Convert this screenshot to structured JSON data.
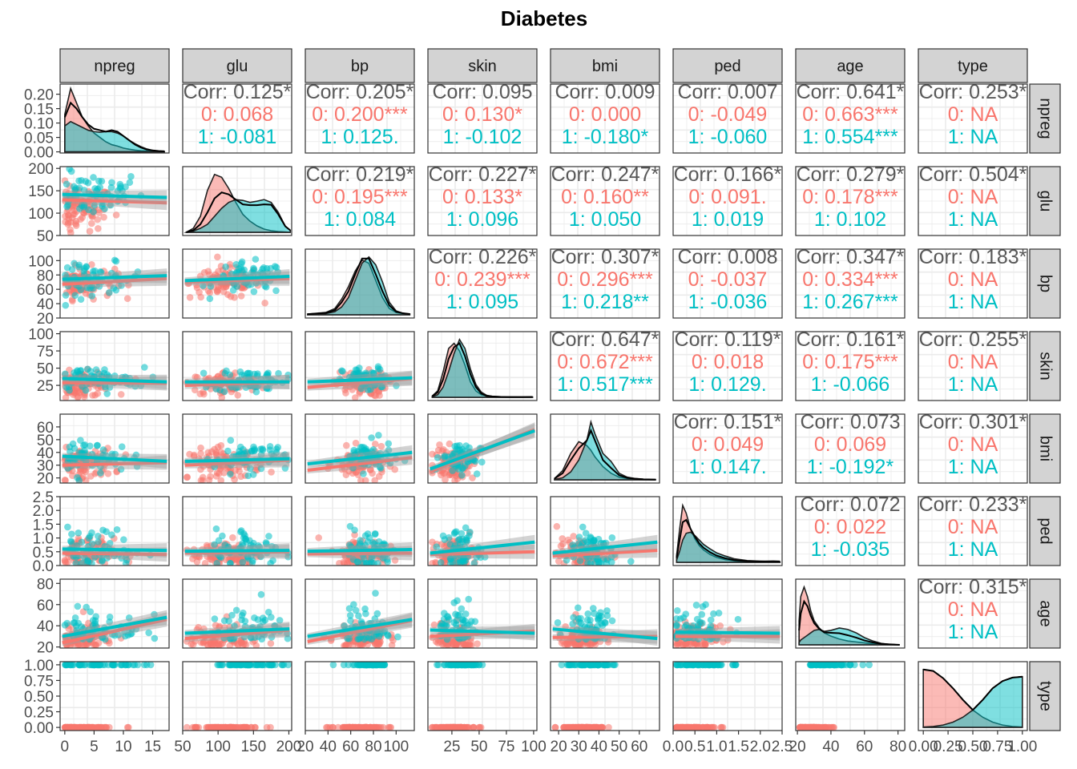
{
  "title": "Diabetes",
  "colors": {
    "group0": "#F8766D",
    "group1": "#00BFC4",
    "overall": "#595959",
    "strip": "#d3d3d3",
    "grid": "#ebebeb",
    "panel_border": "#333333"
  },
  "variables": [
    "npreg",
    "glu",
    "bp",
    "skin",
    "bmi",
    "ped",
    "age",
    "type"
  ],
  "groups": [
    "0",
    "1"
  ],
  "chart_data": {
    "type": "scatter",
    "title": "Diabetes",
    "subtype": "pairs plot (ggpairs) colored by type",
    "x_tick_labels": [
      [
        "0",
        "5",
        "10",
        "15"
      ],
      [
        "50",
        "100",
        "150",
        "200"
      ],
      [
        "20",
        "40",
        "60",
        "80",
        "100"
      ],
      [
        "25",
        "50",
        "75",
        "100"
      ],
      [
        "20",
        "30",
        "40",
        "50",
        "60"
      ],
      [
        "0.0",
        "0.5",
        "1.0",
        "1.5",
        "2.0",
        "2.5"
      ],
      [
        "20",
        "40",
        "60",
        "80"
      ],
      [
        "0.00",
        "0.25",
        "0.50",
        "0.75",
        "1.00"
      ]
    ],
    "y_tick_labels": [
      [
        "0.00",
        "0.05",
        "0.10",
        "0.15",
        "0.20"
      ],
      [
        "50",
        "100",
        "150",
        "200"
      ],
      [
        "20",
        "40",
        "60",
        "80",
        "100"
      ],
      [
        "25",
        "50",
        "75",
        "100"
      ],
      [
        "20",
        "30",
        "40",
        "50",
        "60"
      ],
      [
        "0.0",
        "0.5",
        "1.0",
        "1.5",
        "2.0",
        "2.5"
      ],
      [
        "20",
        "40",
        "60",
        "80"
      ],
      [
        "0.00",
        "0.25",
        "0.50",
        "0.75",
        "1.00"
      ]
    ],
    "axis_ranges": {
      "npreg": [
        -0.8,
        17.8
      ],
      "glu": [
        50,
        204
      ],
      "bp": [
        20,
        116
      ],
      "skin": [
        3,
        103
      ],
      "bmi": [
        16,
        70
      ],
      "ped": [
        0,
        2.5
      ],
      "age": [
        19,
        84
      ],
      "type": [
        -0.05,
        1.05
      ]
    },
    "correlations": [
      {
        "row": "npreg",
        "col": "glu",
        "corr": "Corr: 0.125*",
        "g0": "0: 0.068",
        "g1": "1: -0.081"
      },
      {
        "row": "npreg",
        "col": "bp",
        "corr": "Corr: 0.205*",
        "g0": "0: 0.200***",
        "g1": "1: 0.125."
      },
      {
        "row": "npreg",
        "col": "skin",
        "corr": "Corr: 0.095",
        "g0": "0: 0.130*",
        "g1": "1: -0.102"
      },
      {
        "row": "npreg",
        "col": "bmi",
        "corr": "Corr: 0.009",
        "g0": "0: 0.000",
        "g1": "1: -0.180*"
      },
      {
        "row": "npreg",
        "col": "ped",
        "corr": "Corr: 0.007",
        "g0": "0: -0.049",
        "g1": "1: -0.060"
      },
      {
        "row": "npreg",
        "col": "age",
        "corr": "Corr: 0.641*",
        "g0": "0: 0.663***",
        "g1": "1: 0.554***"
      },
      {
        "row": "npreg",
        "col": "type",
        "corr": "Corr: 0.253*",
        "g0": "0:   NA",
        "g1": "1:   NA"
      },
      {
        "row": "glu",
        "col": "bp",
        "corr": "Corr: 0.219*",
        "g0": "0: 0.195***",
        "g1": "1: 0.084"
      },
      {
        "row": "glu",
        "col": "skin",
        "corr": "Corr: 0.227*",
        "g0": "0: 0.133*",
        "g1": "1: 0.096"
      },
      {
        "row": "glu",
        "col": "bmi",
        "corr": "Corr: 0.247*",
        "g0": "0: 0.160**",
        "g1": "1: 0.050"
      },
      {
        "row": "glu",
        "col": "ped",
        "corr": "Corr: 0.166*",
        "g0": "0: 0.091.",
        "g1": "1: 0.019"
      },
      {
        "row": "glu",
        "col": "age",
        "corr": "Corr: 0.279*",
        "g0": "0: 0.178***",
        "g1": "1: 0.102"
      },
      {
        "row": "glu",
        "col": "type",
        "corr": "Corr: 0.504*",
        "g0": "0:   NA",
        "g1": "1:   NA"
      },
      {
        "row": "bp",
        "col": "skin",
        "corr": "Corr: 0.226*",
        "g0": "0: 0.239***",
        "g1": "1: 0.095"
      },
      {
        "row": "bp",
        "col": "bmi",
        "corr": "Corr: 0.307*",
        "g0": "0: 0.296***",
        "g1": "1: 0.218**"
      },
      {
        "row": "bp",
        "col": "ped",
        "corr": "Corr: 0.008",
        "g0": "0: -0.037",
        "g1": "1: -0.036"
      },
      {
        "row": "bp",
        "col": "age",
        "corr": "Corr: 0.347*",
        "g0": "0: 0.334***",
        "g1": "1: 0.267***"
      },
      {
        "row": "bp",
        "col": "type",
        "corr": "Corr: 0.183*",
        "g0": "0:   NA",
        "g1": "1:   NA"
      },
      {
        "row": "skin",
        "col": "bmi",
        "corr": "Corr: 0.647*",
        "g0": "0: 0.672***",
        "g1": "1: 0.517***"
      },
      {
        "row": "skin",
        "col": "ped",
        "corr": "Corr: 0.119*",
        "g0": "0: 0.018",
        "g1": "1: 0.129."
      },
      {
        "row": "skin",
        "col": "age",
        "corr": "Corr: 0.161*",
        "g0": "0: 0.175***",
        "g1": "1: -0.066"
      },
      {
        "row": "skin",
        "col": "type",
        "corr": "Corr: 0.255*",
        "g0": "0:   NA",
        "g1": "1:   NA"
      },
      {
        "row": "bmi",
        "col": "ped",
        "corr": "Corr: 0.151*",
        "g0": "0: 0.049",
        "g1": "1: 0.147."
      },
      {
        "row": "bmi",
        "col": "age",
        "corr": "Corr: 0.073",
        "g0": "0: 0.069",
        "g1": "1: -0.192*"
      },
      {
        "row": "bmi",
        "col": "type",
        "corr": "Corr: 0.301*",
        "g0": "0:   NA",
        "g1": "1:   NA"
      },
      {
        "row": "ped",
        "col": "age",
        "corr": "Corr: 0.072",
        "g0": "0: 0.022",
        "g1": "1: -0.035"
      },
      {
        "row": "ped",
        "col": "type",
        "corr": "Corr: 0.233*",
        "g0": "0:   NA",
        "g1": "1:   NA"
      },
      {
        "row": "age",
        "col": "type",
        "corr": "Corr: 0.315*",
        "g0": "0:   NA",
        "g1": "1:   NA"
      }
    ],
    "densities": {
      "npreg": {
        "x": [
          0,
          1,
          2,
          3,
          4,
          5,
          6,
          7,
          8,
          9,
          10,
          11,
          12,
          13,
          14,
          15,
          16,
          17
        ],
        "g0": [
          0.13,
          0.22,
          0.17,
          0.12,
          0.09,
          0.065,
          0.05,
          0.035,
          0.025,
          0.02,
          0.013,
          0.009,
          0.006,
          0.004,
          0.003,
          0.002,
          0.001,
          0.001
        ],
        "g1": [
          0.09,
          0.105,
          0.095,
          0.085,
          0.075,
          0.07,
          0.068,
          0.07,
          0.07,
          0.065,
          0.055,
          0.04,
          0.028,
          0.018,
          0.01,
          0.005,
          0.002,
          0.001
        ],
        "all": [
          0.12,
          0.17,
          0.15,
          0.12,
          0.095,
          0.08,
          0.075,
          0.07,
          0.075,
          0.07,
          0.055,
          0.04,
          0.025,
          0.015,
          0.008,
          0.005,
          0.003,
          0.002
        ]
      },
      "glu": {
        "x": [
          55,
          65,
          75,
          85,
          95,
          105,
          115,
          125,
          135,
          145,
          155,
          165,
          175,
          185,
          195,
          202
        ],
        "g0": [
          0.0,
          0.001,
          0.004,
          0.0105,
          0.0145,
          0.0138,
          0.011,
          0.0075,
          0.0045,
          0.0028,
          0.0016,
          0.0008,
          0.0004,
          0.0002,
          0.0001,
          0.0
        ],
        "g1": [
          0.0,
          0.0003,
          0.001,
          0.002,
          0.004,
          0.006,
          0.0075,
          0.0082,
          0.008,
          0.0075,
          0.0078,
          0.0082,
          0.0075,
          0.005,
          0.0015,
          0.0005
        ],
        "all": [
          0.0,
          0.0005,
          0.002,
          0.005,
          0.0085,
          0.01,
          0.0095,
          0.0082,
          0.007,
          0.0068,
          0.0068,
          0.007,
          0.0069,
          0.0045,
          0.0015,
          0.0005
        ]
      },
      "bp": {
        "x": [
          22,
          30,
          38,
          46,
          52,
          58,
          64,
          70,
          76,
          82,
          88,
          94,
          100,
          106,
          112
        ],
        "g0": [
          0.0005,
          0.001,
          0.0015,
          0.004,
          0.01,
          0.018,
          0.028,
          0.035,
          0.033,
          0.022,
          0.011,
          0.004,
          0.0015,
          0.0008,
          0.0005
        ],
        "g1": [
          0.0002,
          0.0004,
          0.0008,
          0.002,
          0.005,
          0.011,
          0.022,
          0.033,
          0.037,
          0.032,
          0.021,
          0.008,
          0.0025,
          0.001,
          0.0005
        ],
        "all": [
          0.0004,
          0.0008,
          0.0012,
          0.003,
          0.008,
          0.015,
          0.026,
          0.036,
          0.036,
          0.026,
          0.015,
          0.006,
          0.002,
          0.001,
          0.0005
        ]
      },
      "skin": {
        "x": [
          7,
          12,
          17,
          22,
          27,
          32,
          37,
          42,
          47,
          52,
          57,
          62,
          70,
          80,
          90,
          99
        ],
        "g0": [
          0.001,
          0.005,
          0.02,
          0.038,
          0.042,
          0.036,
          0.025,
          0.012,
          0.005,
          0.002,
          0.001,
          0.0005,
          0.0003,
          0.0002,
          0.0001,
          0.0001
        ],
        "g1": [
          0.0005,
          0.002,
          0.008,
          0.02,
          0.034,
          0.045,
          0.038,
          0.022,
          0.01,
          0.004,
          0.0015,
          0.0008,
          0.0004,
          0.0002,
          0.0002,
          0.0003
        ],
        "all": [
          0.0008,
          0.004,
          0.014,
          0.03,
          0.039,
          0.042,
          0.032,
          0.018,
          0.008,
          0.003,
          0.001,
          0.0006,
          0.0003,
          0.0002,
          0.0002,
          0.0003
        ]
      },
      "bmi": {
        "x": [
          18,
          22,
          26,
          30,
          34,
          36,
          38,
          42,
          46,
          50,
          54,
          58,
          62,
          66,
          68
        ],
        "g0": [
          0.002,
          0.014,
          0.04,
          0.058,
          0.052,
          0.045,
          0.035,
          0.02,
          0.01,
          0.004,
          0.002,
          0.001,
          0.0005,
          0.0003,
          0.0002
        ],
        "g1": [
          0.0005,
          0.003,
          0.012,
          0.03,
          0.06,
          0.088,
          0.07,
          0.04,
          0.028,
          0.01,
          0.004,
          0.002,
          0.001,
          0.0005,
          0.0005
        ],
        "all": [
          0.002,
          0.01,
          0.03,
          0.048,
          0.06,
          0.075,
          0.06,
          0.03,
          0.018,
          0.007,
          0.003,
          0.0015,
          0.0008,
          0.0004,
          0.0003
        ]
      },
      "ped": {
        "x": [
          0.08,
          0.15,
          0.22,
          0.3,
          0.4,
          0.5,
          0.6,
          0.7,
          0.85,
          1.0,
          1.2,
          1.4,
          1.7,
          2.0,
          2.3,
          2.45
        ],
        "g0": [
          0.3,
          1.5,
          2.55,
          2.2,
          1.5,
          1.05,
          0.75,
          0.55,
          0.35,
          0.22,
          0.12,
          0.07,
          0.03,
          0.02,
          0.01,
          0.01
        ],
        "g1": [
          0.1,
          0.5,
          1.0,
          1.3,
          1.35,
          1.2,
          1.0,
          0.8,
          0.6,
          0.42,
          0.28,
          0.16,
          0.08,
          0.05,
          0.03,
          0.02
        ],
        "all": [
          0.2,
          1.0,
          1.8,
          1.9,
          1.5,
          1.15,
          0.85,
          0.65,
          0.45,
          0.3,
          0.18,
          0.1,
          0.05,
          0.04,
          0.05,
          0.04
        ],
        "ylim": [
          0,
          2.8
        ]
      },
      "age": {
        "x": [
          21,
          22,
          24,
          26,
          28,
          30,
          33,
          36,
          40,
          45,
          50,
          55,
          60,
          65,
          70,
          75,
          81
        ],
        "g0": [
          0.05,
          0.1,
          0.12,
          0.1,
          0.07,
          0.05,
          0.035,
          0.025,
          0.018,
          0.012,
          0.008,
          0.006,
          0.004,
          0.002,
          0.001,
          0.001,
          0.0
        ],
        "g1": [
          0.005,
          0.01,
          0.015,
          0.02,
          0.025,
          0.03,
          0.032,
          0.028,
          0.03,
          0.035,
          0.032,
          0.025,
          0.015,
          0.008,
          0.003,
          0.001,
          0.0
        ],
        "all": [
          0.03,
          0.065,
          0.09,
          0.08,
          0.06,
          0.045,
          0.033,
          0.026,
          0.025,
          0.024,
          0.02,
          0.015,
          0.009,
          0.005,
          0.002,
          0.001,
          0.0
        ]
      },
      "type": {
        "x": [
          0.0,
          0.1,
          0.2,
          0.3,
          0.4,
          0.5,
          0.6,
          0.7,
          0.8,
          0.9,
          1.0
        ],
        "g0": [
          2.0,
          1.95,
          1.7,
          1.35,
          0.95,
          0.6,
          0.35,
          0.18,
          0.08,
          0.03,
          0.01
        ],
        "g1": [
          0.01,
          0.03,
          0.08,
          0.18,
          0.35,
          0.6,
          0.95,
          1.35,
          1.6,
          1.72,
          1.75
        ],
        "all": [
          2.0,
          1.95,
          1.7,
          1.35,
          0.95,
          0.6,
          0.95,
          1.35,
          1.6,
          1.72,
          1.75
        ]
      }
    },
    "regression_lines": [
      {
        "row": "glu",
        "col": "npreg",
        "g0": [
          130,
          123
        ],
        "g1": [
          142,
          135
        ]
      },
      {
        "row": "bp",
        "col": "npreg",
        "g0": [
          67,
          75
        ],
        "g1": [
          74,
          79
        ]
      },
      {
        "row": "bp",
        "col": "glu",
        "g0": [
          70,
          75
        ],
        "g1": [
          72,
          78
        ]
      },
      {
        "row": "skin",
        "col": "npreg",
        "g0": [
          29,
          28
        ],
        "g1": [
          35,
          30
        ]
      },
      {
        "row": "skin",
        "col": "glu",
        "g0": [
          25,
          30
        ],
        "g1": [
          30,
          30
        ]
      },
      {
        "row": "skin",
        "col": "bp",
        "g0": [
          22,
          35
        ],
        "g1": [
          30,
          36
        ]
      },
      {
        "row": "bmi",
        "col": "npreg",
        "g0": [
          30,
          32
        ],
        "g1": [
          37,
          33
        ]
      },
      {
        "row": "bmi",
        "col": "glu",
        "g0": [
          30,
          34
        ],
        "g1": [
          33,
          35
        ]
      },
      {
        "row": "bmi",
        "col": "bp",
        "g0": [
          26,
          36
        ],
        "g1": [
          31,
          40
        ]
      },
      {
        "row": "bmi",
        "col": "skin",
        "g0": [
          25,
          58
        ],
        "g1": [
          27,
          57
        ]
      },
      {
        "row": "ped",
        "col": "npreg",
        "g0": [
          0.45,
          0.4
        ],
        "g1": [
          0.6,
          0.55
        ]
      },
      {
        "row": "ped",
        "col": "glu",
        "g0": [
          0.45,
          0.5
        ],
        "g1": [
          0.52,
          0.55
        ]
      },
      {
        "row": "ped",
        "col": "bp",
        "g0": [
          0.42,
          0.45
        ],
        "g1": [
          0.52,
          0.58
        ]
      },
      {
        "row": "ped",
        "col": "skin",
        "g0": [
          0.4,
          0.5
        ],
        "g1": [
          0.45,
          0.85
        ]
      },
      {
        "row": "ped",
        "col": "bmi",
        "g0": [
          0.35,
          0.55
        ],
        "g1": [
          0.45,
          0.85
        ]
      },
      {
        "row": "age",
        "col": "npreg",
        "g0": [
          24,
          46
        ],
        "g1": [
          30,
          48
        ]
      },
      {
        "row": "age",
        "col": "glu",
        "g0": [
          28,
          36
        ],
        "g1": [
          33,
          37
        ]
      },
      {
        "row": "age",
        "col": "bp",
        "g0": [
          25,
          45
        ],
        "g1": [
          30,
          46
        ]
      },
      {
        "row": "age",
        "col": "skin",
        "g0": [
          30,
          35
        ],
        "g1": [
          36,
          33
        ]
      },
      {
        "row": "age",
        "col": "bmi",
        "g0": [
          29,
          30
        ],
        "g1": [
          37,
          28
        ]
      },
      {
        "row": "age",
        "col": "ped",
        "g0": [
          30,
          30
        ],
        "g1": [
          34,
          33
        ]
      }
    ],
    "grid": true,
    "legend": "none"
  }
}
